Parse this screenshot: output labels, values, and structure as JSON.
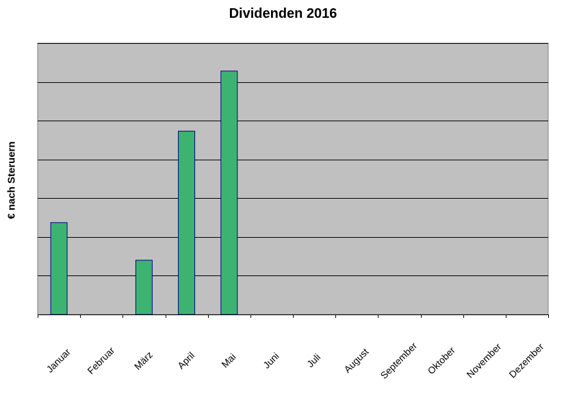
{
  "chart_data": {
    "type": "bar",
    "title": "Dividenden 2016",
    "xlabel": "",
    "ylabel": "€ nach Steruern",
    "categories": [
      "Januar",
      "Februar",
      "März",
      "April",
      "Mai",
      "Juni",
      "Juli",
      "August",
      "September",
      "Oktober",
      "November",
      "Dezember"
    ],
    "values": [
      2.37,
      0,
      1.4,
      4.73,
      6.28,
      0,
      0,
      0,
      0,
      0,
      0,
      0
    ],
    "ylim": [
      0,
      7
    ],
    "grid": true,
    "legend": "none",
    "colors": {
      "plot_background": "#c0c0c0",
      "bar_fill": "#3cb371",
      "bar_stroke": "#000080",
      "gridline": "#000000"
    }
  }
}
